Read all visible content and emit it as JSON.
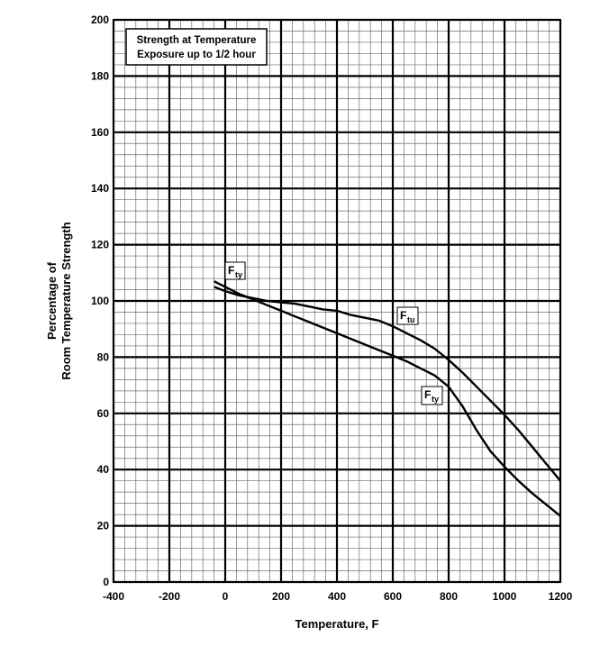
{
  "chart_data": {
    "type": "line",
    "title_lines": [
      "Strength at Temperature",
      "Exposure up to 1/2 hour"
    ],
    "xlabel": "Temperature, F",
    "ylabel_lines": [
      "Percentage of",
      "Room Temperature Strength"
    ],
    "xlim": [
      -400,
      1200
    ],
    "ylim": [
      0,
      200
    ],
    "xticks": [
      -400,
      -200,
      0,
      200,
      400,
      600,
      800,
      1000,
      1200
    ],
    "yticks": [
      0,
      20,
      40,
      60,
      80,
      100,
      120,
      140,
      160,
      180,
      200
    ],
    "grid": true,
    "minor_grid_divisions": 5,
    "series": [
      {
        "name": "Ftu",
        "label_main": "F",
        "label_sub": "tu",
        "x": [
          -40,
          0,
          50,
          100,
          150,
          200,
          250,
          300,
          350,
          400,
          450,
          500,
          550,
          600,
          650,
          700,
          750,
          800,
          850,
          900,
          950,
          1000,
          1050,
          1100,
          1150,
          1200
        ],
        "y": [
          105,
          103.5,
          102,
          101,
          100,
          99.5,
          99,
          98,
          97,
          96.5,
          95,
          94,
          93,
          91,
          88.5,
          86,
          83,
          79,
          74.5,
          69.5,
          64.5,
          59.5,
          54,
          48,
          42,
          36
        ]
      },
      {
        "name": "Fty",
        "label_main": "F",
        "label_sub": "ty",
        "x": [
          -40,
          0,
          50,
          100,
          150,
          200,
          250,
          300,
          350,
          400,
          450,
          500,
          550,
          600,
          650,
          700,
          750,
          800,
          850,
          900,
          950,
          1000,
          1050,
          1100,
          1150,
          1200
        ],
        "y": [
          107,
          105,
          102.5,
          100.5,
          98.5,
          96.5,
          94.5,
          92.5,
          90.5,
          88.5,
          86.5,
          84.5,
          82.5,
          80.5,
          78.5,
          76,
          73.5,
          69.5,
          62.5,
          54,
          46.5,
          41,
          36,
          31.5,
          27.5,
          23.5
        ]
      }
    ]
  }
}
